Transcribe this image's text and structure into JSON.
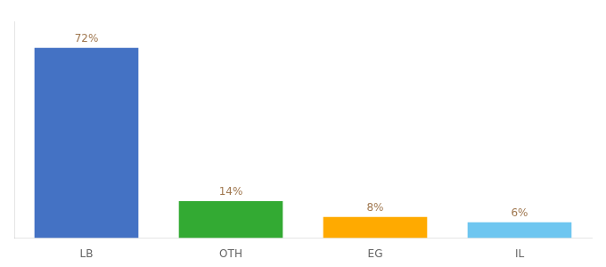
{
  "chart_data": {
    "type": "bar",
    "categories": [
      "LB",
      "OTH",
      "EG",
      "IL"
    ],
    "values": [
      72,
      14,
      8,
      6
    ],
    "value_labels": [
      "72%",
      "14%",
      "8%",
      "6%"
    ],
    "colors": [
      "#4472c4",
      "#33aa33",
      "#ffaa00",
      "#6ec6f0"
    ],
    "ylim": [
      0,
      82
    ],
    "grid": false,
    "data_labels": true,
    "tick_labels": "x"
  }
}
